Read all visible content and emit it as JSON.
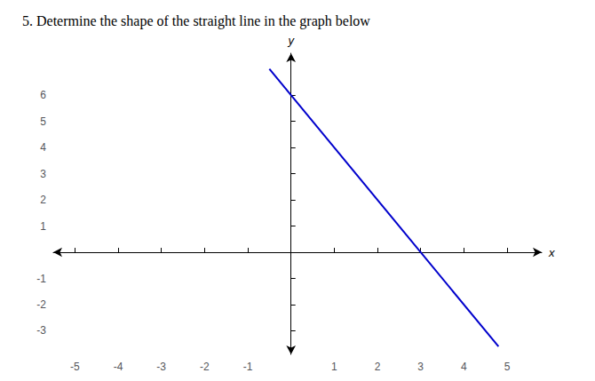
{
  "chart_data": {
    "type": "line",
    "title": "5. Determine the shape of the straight line in the graph below",
    "x": [
      -0.5,
      4.8
    ],
    "values": [
      7.0,
      -3.6
    ],
    "color": "#0000CC",
    "xlim": [
      -5.5,
      5.8
    ],
    "ylim": [
      -3.9,
      7.6
    ],
    "xticks": [
      -5,
      -4,
      -3,
      -2,
      -1,
      1,
      2,
      3,
      4,
      5
    ],
    "yticks": [
      -3,
      -2,
      -1,
      1,
      2,
      3,
      4,
      5,
      6
    ],
    "xlabel": "x",
    "ylabel": "y",
    "grid": false
  }
}
